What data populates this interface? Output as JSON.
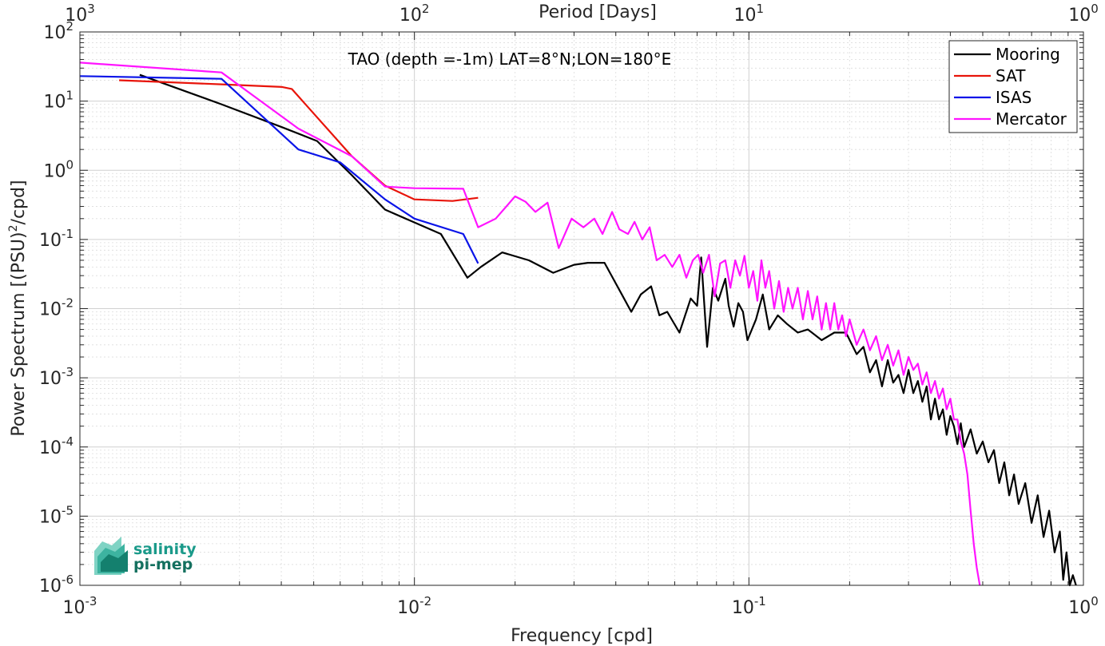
{
  "chart_data": {
    "type": "line",
    "title": "TAO (depth =-1m) LAT=8°N;LON=180°E",
    "xlabel": "Frequency [cpd]",
    "ylabel": "Power Spectrum [(PSU)",
    "ylabel_sup": "2",
    "ylabel_tail": "/cpd]",
    "top_xlabel": "Period [Days]",
    "xscale": "log",
    "yscale": "log",
    "xlim": [
      0.001,
      1
    ],
    "ylim": [
      1e-06,
      100
    ],
    "grid": true,
    "legend_position": "top-right",
    "x_ticks": [
      {
        "base": "10",
        "exp": "-3"
      },
      {
        "base": "10",
        "exp": "-2"
      },
      {
        "base": "10",
        "exp": "-1"
      },
      {
        "base": "10",
        "exp": "0"
      }
    ],
    "top_ticks": [
      {
        "base": "10",
        "exp": "3"
      },
      {
        "base": "10",
        "exp": "2"
      },
      {
        "base": "10",
        "exp": "1"
      },
      {
        "base": "10",
        "exp": "0"
      }
    ],
    "y_ticks": [
      {
        "base": "10",
        "exp": "2"
      },
      {
        "base": "10",
        "exp": "1"
      },
      {
        "base": "10",
        "exp": "0"
      },
      {
        "base": "10",
        "exp": "-1"
      },
      {
        "base": "10",
        "exp": "-2"
      },
      {
        "base": "10",
        "exp": "-3"
      },
      {
        "base": "10",
        "exp": "-4"
      },
      {
        "base": "10",
        "exp": "-5"
      },
      {
        "base": "10",
        "exp": "-6"
      }
    ],
    "series": [
      {
        "name": "Mooring",
        "color": "#000000",
        "points": [
          [
            0.00151,
            24
          ],
          [
            0.00265,
            9
          ],
          [
            0.00402,
            4.2
          ],
          [
            0.00512,
            2.65
          ],
          [
            0.0065,
            0.85
          ],
          [
            0.00817,
            0.27
          ],
          [
            0.0099,
            0.18
          ],
          [
            0.012,
            0.12
          ],
          [
            0.0144,
            0.028
          ],
          [
            0.0158,
            0.04
          ],
          [
            0.0183,
            0.065
          ],
          [
            0.022,
            0.05
          ],
          [
            0.026,
            0.033
          ],
          [
            0.03,
            0.043
          ],
          [
            0.033,
            0.046
          ],
          [
            0.037,
            0.046
          ],
          [
            0.042,
            0.015
          ],
          [
            0.0445,
            0.009
          ],
          [
            0.0475,
            0.016
          ],
          [
            0.051,
            0.021
          ],
          [
            0.054,
            0.008
          ],
          [
            0.057,
            0.009
          ],
          [
            0.062,
            0.0045
          ],
          [
            0.067,
            0.014
          ],
          [
            0.07,
            0.011
          ],
          [
            0.072,
            0.055
          ],
          [
            0.075,
            0.0028
          ],
          [
            0.078,
            0.02
          ],
          [
            0.081,
            0.013
          ],
          [
            0.085,
            0.027
          ],
          [
            0.087,
            0.011
          ],
          [
            0.09,
            0.0055
          ],
          [
            0.093,
            0.012
          ],
          [
            0.096,
            0.009
          ],
          [
            0.099,
            0.0035
          ],
          [
            0.105,
            0.007
          ],
          [
            0.11,
            0.016
          ],
          [
            0.115,
            0.005
          ],
          [
            0.122,
            0.008
          ],
          [
            0.13,
            0.006
          ],
          [
            0.14,
            0.0045
          ],
          [
            0.15,
            0.005
          ],
          [
            0.165,
            0.0035
          ],
          [
            0.18,
            0.0045
          ],
          [
            0.195,
            0.0045
          ],
          [
            0.21,
            0.0022
          ],
          [
            0.22,
            0.0028
          ],
          [
            0.23,
            0.0012
          ],
          [
            0.24,
            0.0018
          ],
          [
            0.25,
            0.00075
          ],
          [
            0.26,
            0.0018
          ],
          [
            0.27,
            0.00085
          ],
          [
            0.28,
            0.0011
          ],
          [
            0.29,
            0.0006
          ],
          [
            0.3,
            0.0013
          ],
          [
            0.31,
            0.0006
          ],
          [
            0.32,
            0.0009
          ],
          [
            0.33,
            0.00045
          ],
          [
            0.34,
            0.00075
          ],
          [
            0.35,
            0.00025
          ],
          [
            0.36,
            0.0005
          ],
          [
            0.37,
            0.00025
          ],
          [
            0.38,
            0.00035
          ],
          [
            0.39,
            0.00015
          ],
          [
            0.4,
            0.00028
          ],
          [
            0.41,
            0.0002
          ],
          [
            0.42,
            0.00011
          ],
          [
            0.43,
            0.00022
          ],
          [
            0.44,
            0.0001
          ],
          [
            0.46,
            0.00018
          ],
          [
            0.48,
            8e-05
          ],
          [
            0.5,
            0.00012
          ],
          [
            0.52,
            6e-05
          ],
          [
            0.54,
            9e-05
          ],
          [
            0.56,
            3e-05
          ],
          [
            0.58,
            6e-05
          ],
          [
            0.6,
            2e-05
          ],
          [
            0.62,
            4e-05
          ],
          [
            0.64,
            1.5e-05
          ],
          [
            0.67,
            3e-05
          ],
          [
            0.7,
            8e-06
          ],
          [
            0.73,
            2e-05
          ],
          [
            0.76,
            5e-06
          ],
          [
            0.79,
            1.2e-05
          ],
          [
            0.82,
            3e-06
          ],
          [
            0.85,
            6e-06
          ],
          [
            0.87,
            1.2e-06
          ],
          [
            0.89,
            3e-06
          ],
          [
            0.91,
            1e-06
          ],
          [
            0.93,
            1.4e-06
          ],
          [
            0.95,
            1e-06
          ]
        ]
      },
      {
        "name": "SAT",
        "color": "#e8140a",
        "points": [
          [
            0.00131,
            20
          ],
          [
            0.00265,
            17.5
          ],
          [
            0.00402,
            16
          ],
          [
            0.0043,
            15
          ],
          [
            0.0065,
            1.6
          ],
          [
            0.00817,
            0.6
          ],
          [
            0.01,
            0.38
          ],
          [
            0.013,
            0.36
          ],
          [
            0.0155,
            0.4
          ]
        ]
      },
      {
        "name": "ISAS",
        "color": "#0a14e8",
        "points": [
          [
            0.001,
            23
          ],
          [
            0.00265,
            21
          ],
          [
            0.0045,
            2
          ],
          [
            0.006,
            1.3
          ],
          [
            0.00817,
            0.38
          ],
          [
            0.01,
            0.2
          ],
          [
            0.014,
            0.12
          ],
          [
            0.0155,
            0.045
          ]
        ]
      },
      {
        "name": "Mercator",
        "color": "#ff14ff",
        "points": [
          [
            0.001,
            36
          ],
          [
            0.00265,
            26
          ],
          [
            0.0045,
            4
          ],
          [
            0.0065,
            1.6
          ],
          [
            0.00817,
            0.58
          ],
          [
            0.01,
            0.55
          ],
          [
            0.014,
            0.54
          ],
          [
            0.0155,
            0.15
          ],
          [
            0.0175,
            0.2
          ],
          [
            0.02,
            0.42
          ],
          [
            0.0215,
            0.35
          ],
          [
            0.023,
            0.25
          ],
          [
            0.025,
            0.34
          ],
          [
            0.027,
            0.075
          ],
          [
            0.0295,
            0.2
          ],
          [
            0.032,
            0.15
          ],
          [
            0.0345,
            0.2
          ],
          [
            0.0365,
            0.12
          ],
          [
            0.039,
            0.25
          ],
          [
            0.041,
            0.14
          ],
          [
            0.0435,
            0.12
          ],
          [
            0.0455,
            0.18
          ],
          [
            0.048,
            0.1
          ],
          [
            0.0505,
            0.15
          ],
          [
            0.053,
            0.05
          ],
          [
            0.056,
            0.06
          ],
          [
            0.059,
            0.04
          ],
          [
            0.062,
            0.06
          ],
          [
            0.065,
            0.028
          ],
          [
            0.068,
            0.05
          ],
          [
            0.0705,
            0.06
          ],
          [
            0.073,
            0.033
          ],
          [
            0.076,
            0.06
          ],
          [
            0.079,
            0.015
          ],
          [
            0.082,
            0.045
          ],
          [
            0.085,
            0.05
          ],
          [
            0.088,
            0.02
          ],
          [
            0.091,
            0.05
          ],
          [
            0.094,
            0.03
          ],
          [
            0.097,
            0.058
          ],
          [
            0.1,
            0.02
          ],
          [
            0.103,
            0.035
          ],
          [
            0.106,
            0.013
          ],
          [
            0.109,
            0.05
          ],
          [
            0.112,
            0.02
          ],
          [
            0.115,
            0.035
          ],
          [
            0.119,
            0.01
          ],
          [
            0.123,
            0.025
          ],
          [
            0.127,
            0.009
          ],
          [
            0.131,
            0.02
          ],
          [
            0.135,
            0.01
          ],
          [
            0.14,
            0.02
          ],
          [
            0.145,
            0.007
          ],
          [
            0.15,
            0.018
          ],
          [
            0.155,
            0.007
          ],
          [
            0.16,
            0.015
          ],
          [
            0.165,
            0.005
          ],
          [
            0.17,
            0.012
          ],
          [
            0.175,
            0.005
          ],
          [
            0.18,
            0.012
          ],
          [
            0.185,
            0.005
          ],
          [
            0.19,
            0.008
          ],
          [
            0.195,
            0.004
          ],
          [
            0.2,
            0.007
          ],
          [
            0.21,
            0.003
          ],
          [
            0.22,
            0.005
          ],
          [
            0.23,
            0.0025
          ],
          [
            0.24,
            0.004
          ],
          [
            0.25,
            0.0018
          ],
          [
            0.26,
            0.003
          ],
          [
            0.27,
            0.0015
          ],
          [
            0.28,
            0.0025
          ],
          [
            0.29,
            0.0011
          ],
          [
            0.3,
            0.002
          ],
          [
            0.31,
            0.0013
          ],
          [
            0.32,
            0.0016
          ],
          [
            0.33,
            0.0008
          ],
          [
            0.34,
            0.0012
          ],
          [
            0.35,
            0.0006
          ],
          [
            0.36,
            0.0009
          ],
          [
            0.37,
            0.0005
          ],
          [
            0.38,
            0.0007
          ],
          [
            0.39,
            0.00035
          ],
          [
            0.4,
            0.0005
          ],
          [
            0.41,
            0.00025
          ],
          [
            0.42,
            0.00025
          ],
          [
            0.43,
            0.00012
          ],
          [
            0.44,
            8e-05
          ],
          [
            0.45,
            4e-05
          ],
          [
            0.46,
            1.2e-05
          ],
          [
            0.47,
            4e-06
          ],
          [
            0.48,
            1.8e-06
          ],
          [
            0.49,
            1e-06
          ]
        ]
      }
    ]
  },
  "logo": {
    "line1": "salinity",
    "line2": "pi-mep"
  }
}
